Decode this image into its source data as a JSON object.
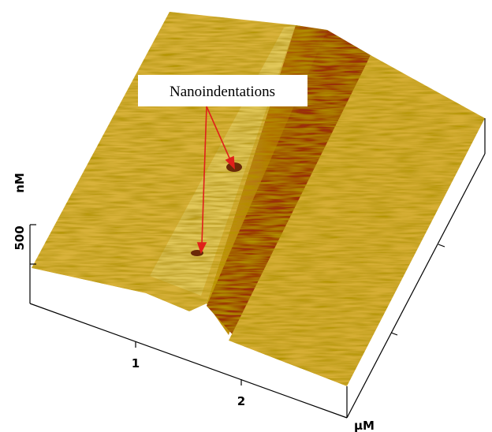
{
  "annotation": {
    "label": "Nanoindentations"
  },
  "axes": {
    "z_label": "nM",
    "z_tick": "500",
    "x_ticks": [
      "1",
      "2"
    ],
    "x_label": "µM"
  }
}
